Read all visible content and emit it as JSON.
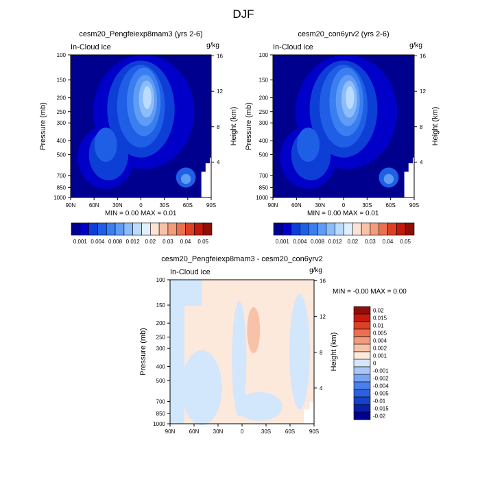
{
  "title": "DJF",
  "colors": {
    "abs_scale": [
      "#00008f",
      "#0000c8",
      "#0d3fd6",
      "#1f5fe6",
      "#3a7ef0",
      "#5f9cf6",
      "#8cbcfa",
      "#bcdcfd",
      "#e0effe",
      "#fde3d3",
      "#f8c2a8",
      "#f39c7c",
      "#ea7052",
      "#dc4126",
      "#bf1a0b",
      "#900e08"
    ],
    "diff_scale": [
      "#00008f",
      "#0a1fa8",
      "#1740c9",
      "#2d60e0",
      "#4a80ee",
      "#79a4f4",
      "#a9c8f8",
      "#d2e6fc",
      "#fde8dc",
      "#f8c2a8",
      "#f39c7c",
      "#ea7052",
      "#dc4126",
      "#c41a0e",
      "#900e08"
    ]
  },
  "chart_data": [
    {
      "type": "heatmap",
      "panel": "top-left",
      "title": "cesm20_Pengfeiexp8mam3 (yrs 2-6)",
      "variable": "In-Cloud ice",
      "units": "g/kg",
      "xlabel": "",
      "ylabel": "Pressure (mb)",
      "y2label": "Height (km)",
      "x_ticks": [
        "90N",
        "60N",
        "30N",
        "0",
        "30S",
        "60S",
        "90S"
      ],
      "y_ticks": [
        100,
        150,
        200,
        250,
        300,
        400,
        500,
        700,
        850,
        1000
      ],
      "y2_ticks": [
        16,
        12,
        8,
        4
      ],
      "ylim": [
        1000,
        100
      ],
      "stats": {
        "min_label": "MIN =",
        "min": "0.00",
        "max_label": "MAX =",
        "max": "0.01"
      },
      "levels": [
        "0.001",
        "0.004",
        "0.008",
        "0.012",
        "0.02",
        "0.03",
        "0.04",
        "0.05"
      ]
    },
    {
      "type": "heatmap",
      "panel": "top-right",
      "title": "cesm20_con6yrv2 (yrs 2-6)",
      "variable": "In-Cloud ice",
      "units": "g/kg",
      "xlabel": "",
      "ylabel": "Pressure (mb)",
      "y2label": "Height (km)",
      "x_ticks": [
        "90N",
        "60N",
        "30N",
        "0",
        "30S",
        "60S",
        "90S"
      ],
      "y_ticks": [
        100,
        150,
        200,
        250,
        300,
        400,
        500,
        700,
        850,
        1000
      ],
      "y2_ticks": [
        16,
        12,
        8,
        4
      ],
      "ylim": [
        1000,
        100
      ],
      "stats": {
        "min_label": "MIN =",
        "min": "0.00",
        "max_label": "MAX =",
        "max": "0.01"
      },
      "levels": [
        "0.001",
        "0.004",
        "0.008",
        "0.012",
        "0.02",
        "0.03",
        "0.04",
        "0.05"
      ]
    },
    {
      "type": "heatmap",
      "panel": "bottom",
      "title": "cesm20_Pengfeiexp8mam3 - cesm20_con6yrv2",
      "variable": "In-Cloud ice",
      "units": "g/kg",
      "xlabel": "",
      "ylabel": "Pressure (mb)",
      "y2label": "Height (km)",
      "x_ticks": [
        "90N",
        "60N",
        "30N",
        "0",
        "30S",
        "60S",
        "90S"
      ],
      "y_ticks": [
        100,
        150,
        200,
        250,
        300,
        400,
        500,
        700,
        850,
        1000
      ],
      "y2_ticks": [
        16,
        12,
        8,
        4
      ],
      "ylim": [
        1000,
        100
      ],
      "stats": {
        "min_label": "MIN =",
        "min": "-0.00",
        "max_label": "MAX =",
        "max": "0.00"
      },
      "levels": [
        "0.02",
        "0.015",
        "0.01",
        "0.005",
        "0.004",
        "0.002",
        "0.001",
        "0",
        "-0.001",
        "-0.002",
        "-0.004",
        "-0.005",
        "-0.01",
        "-0.015",
        "-0.02"
      ]
    }
  ]
}
